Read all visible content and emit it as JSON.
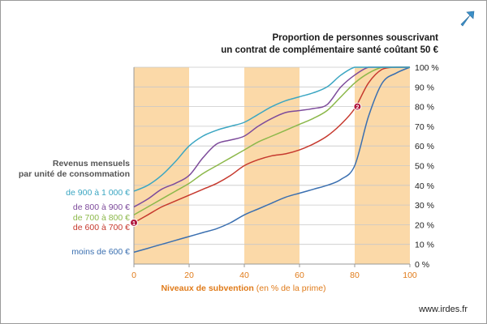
{
  "title_line1": "Proportion de personnes souscrivant",
  "title_line2": "un contrat de complémentaire santé coûtant 50 €",
  "legend_title_line1": "Revenus mensuels",
  "legend_title_line2": "par unité de consommation",
  "xlabel_main": "Niveaux de subvention",
  "xlabel_sub": " (en % de la prime)",
  "site": "www.irdes.fr",
  "chart_data": {
    "type": "line",
    "title": "Proportion de personnes souscrivant un contrat de complémentaire santé coûtant 50 €",
    "xlabel": "Niveaux de subvention (en % de la prime)",
    "ylabel": "",
    "xlim": [
      0,
      100
    ],
    "ylim": [
      0,
      100
    ],
    "x_ticks": [
      0,
      20,
      40,
      60,
      80,
      100
    ],
    "y_ticks": [
      0,
      10,
      20,
      30,
      40,
      50,
      60,
      70,
      80,
      90,
      100
    ],
    "x_tick_labels": [
      "0",
      "20",
      "40",
      "60",
      "80",
      "100"
    ],
    "y_tick_labels": [
      "0 %",
      "10 %",
      "20 %",
      "30 %",
      "40 %",
      "50 %",
      "60 %",
      "70 %",
      "80 %",
      "90 %",
      "100 %"
    ],
    "grid": "horizontal",
    "shaded_bands": [
      [
        0,
        20
      ],
      [
        40,
        60
      ],
      [
        80,
        100
      ]
    ],
    "band_color": "#fbd9a8",
    "series": [
      {
        "name": "de 900 à 1 000 €",
        "color": "#3ba6c2",
        "points": [
          [
            0,
            37
          ],
          [
            5,
            40
          ],
          [
            10,
            45
          ],
          [
            15,
            52
          ],
          [
            20,
            60
          ],
          [
            25,
            65
          ],
          [
            30,
            68
          ],
          [
            35,
            70
          ],
          [
            40,
            72
          ],
          [
            45,
            76
          ],
          [
            50,
            80
          ],
          [
            55,
            83
          ],
          [
            60,
            85
          ],
          [
            65,
            87
          ],
          [
            70,
            90
          ],
          [
            75,
            96
          ],
          [
            80,
            100
          ],
          [
            85,
            100
          ],
          [
            90,
            100
          ],
          [
            95,
            100
          ],
          [
            100,
            100
          ]
        ]
      },
      {
        "name": "de 800 à 900 €",
        "color": "#7d4b9b",
        "points": [
          [
            0,
            29
          ],
          [
            5,
            33
          ],
          [
            10,
            38
          ],
          [
            15,
            41
          ],
          [
            20,
            45
          ],
          [
            25,
            54
          ],
          [
            30,
            61
          ],
          [
            35,
            63
          ],
          [
            40,
            65
          ],
          [
            45,
            70
          ],
          [
            50,
            74
          ],
          [
            55,
            77
          ],
          [
            60,
            78
          ],
          [
            65,
            79
          ],
          [
            70,
            81
          ],
          [
            75,
            90
          ],
          [
            80,
            96
          ],
          [
            85,
            100
          ],
          [
            90,
            100
          ],
          [
            95,
            100
          ],
          [
            100,
            100
          ]
        ]
      },
      {
        "name": "de 700 à 800 €",
        "color": "#8cb84a",
        "points": [
          [
            0,
            25
          ],
          [
            5,
            29
          ],
          [
            10,
            33
          ],
          [
            15,
            37
          ],
          [
            20,
            41
          ],
          [
            25,
            46
          ],
          [
            30,
            50
          ],
          [
            35,
            54
          ],
          [
            40,
            58
          ],
          [
            45,
            62
          ],
          [
            50,
            65
          ],
          [
            55,
            68
          ],
          [
            60,
            71
          ],
          [
            65,
            74
          ],
          [
            70,
            78
          ],
          [
            75,
            85
          ],
          [
            80,
            92
          ],
          [
            85,
            97
          ],
          [
            90,
            100
          ],
          [
            95,
            100
          ],
          [
            100,
            100
          ]
        ]
      },
      {
        "name": "de 600 à 700 €",
        "color": "#c6392e",
        "points": [
          [
            0,
            21
          ],
          [
            5,
            25
          ],
          [
            10,
            29
          ],
          [
            15,
            32
          ],
          [
            20,
            35
          ],
          [
            25,
            38
          ],
          [
            30,
            41
          ],
          [
            35,
            45
          ],
          [
            40,
            50
          ],
          [
            45,
            53
          ],
          [
            50,
            55
          ],
          [
            55,
            56
          ],
          [
            60,
            58
          ],
          [
            65,
            61
          ],
          [
            70,
            65
          ],
          [
            75,
            71
          ],
          [
            80,
            79
          ],
          [
            85,
            92
          ],
          [
            90,
            99
          ],
          [
            95,
            100
          ],
          [
            100,
            100
          ]
        ]
      },
      {
        "name": "moins de 600 €",
        "color": "#3a6fb0",
        "points": [
          [
            0,
            6
          ],
          [
            5,
            8
          ],
          [
            10,
            10
          ],
          [
            15,
            12
          ],
          [
            20,
            14
          ],
          [
            25,
            16
          ],
          [
            30,
            18
          ],
          [
            35,
            21
          ],
          [
            40,
            25
          ],
          [
            45,
            28
          ],
          [
            50,
            31
          ],
          [
            55,
            34
          ],
          [
            60,
            36
          ],
          [
            65,
            38
          ],
          [
            70,
            40
          ],
          [
            75,
            43
          ],
          [
            80,
            50
          ],
          [
            85,
            75
          ],
          [
            90,
            92
          ],
          [
            95,
            97
          ],
          [
            100,
            100
          ]
        ]
      }
    ],
    "markers": [
      {
        "label": "1",
        "x": 0,
        "y": 21,
        "color": "#b0173e"
      },
      {
        "label": "2",
        "x": 81,
        "y": 80,
        "color": "#b0173e"
      }
    ]
  },
  "label_colors": {
    "de 900 à 1 000 €": "#3ba6c2",
    "de 800 à 900 €": "#7d4b9b",
    "de 700 à 800 €": "#8cb84a",
    "de 600 à 700 €": "#c6392e",
    "moins de 600 €": "#3a6fb0"
  }
}
